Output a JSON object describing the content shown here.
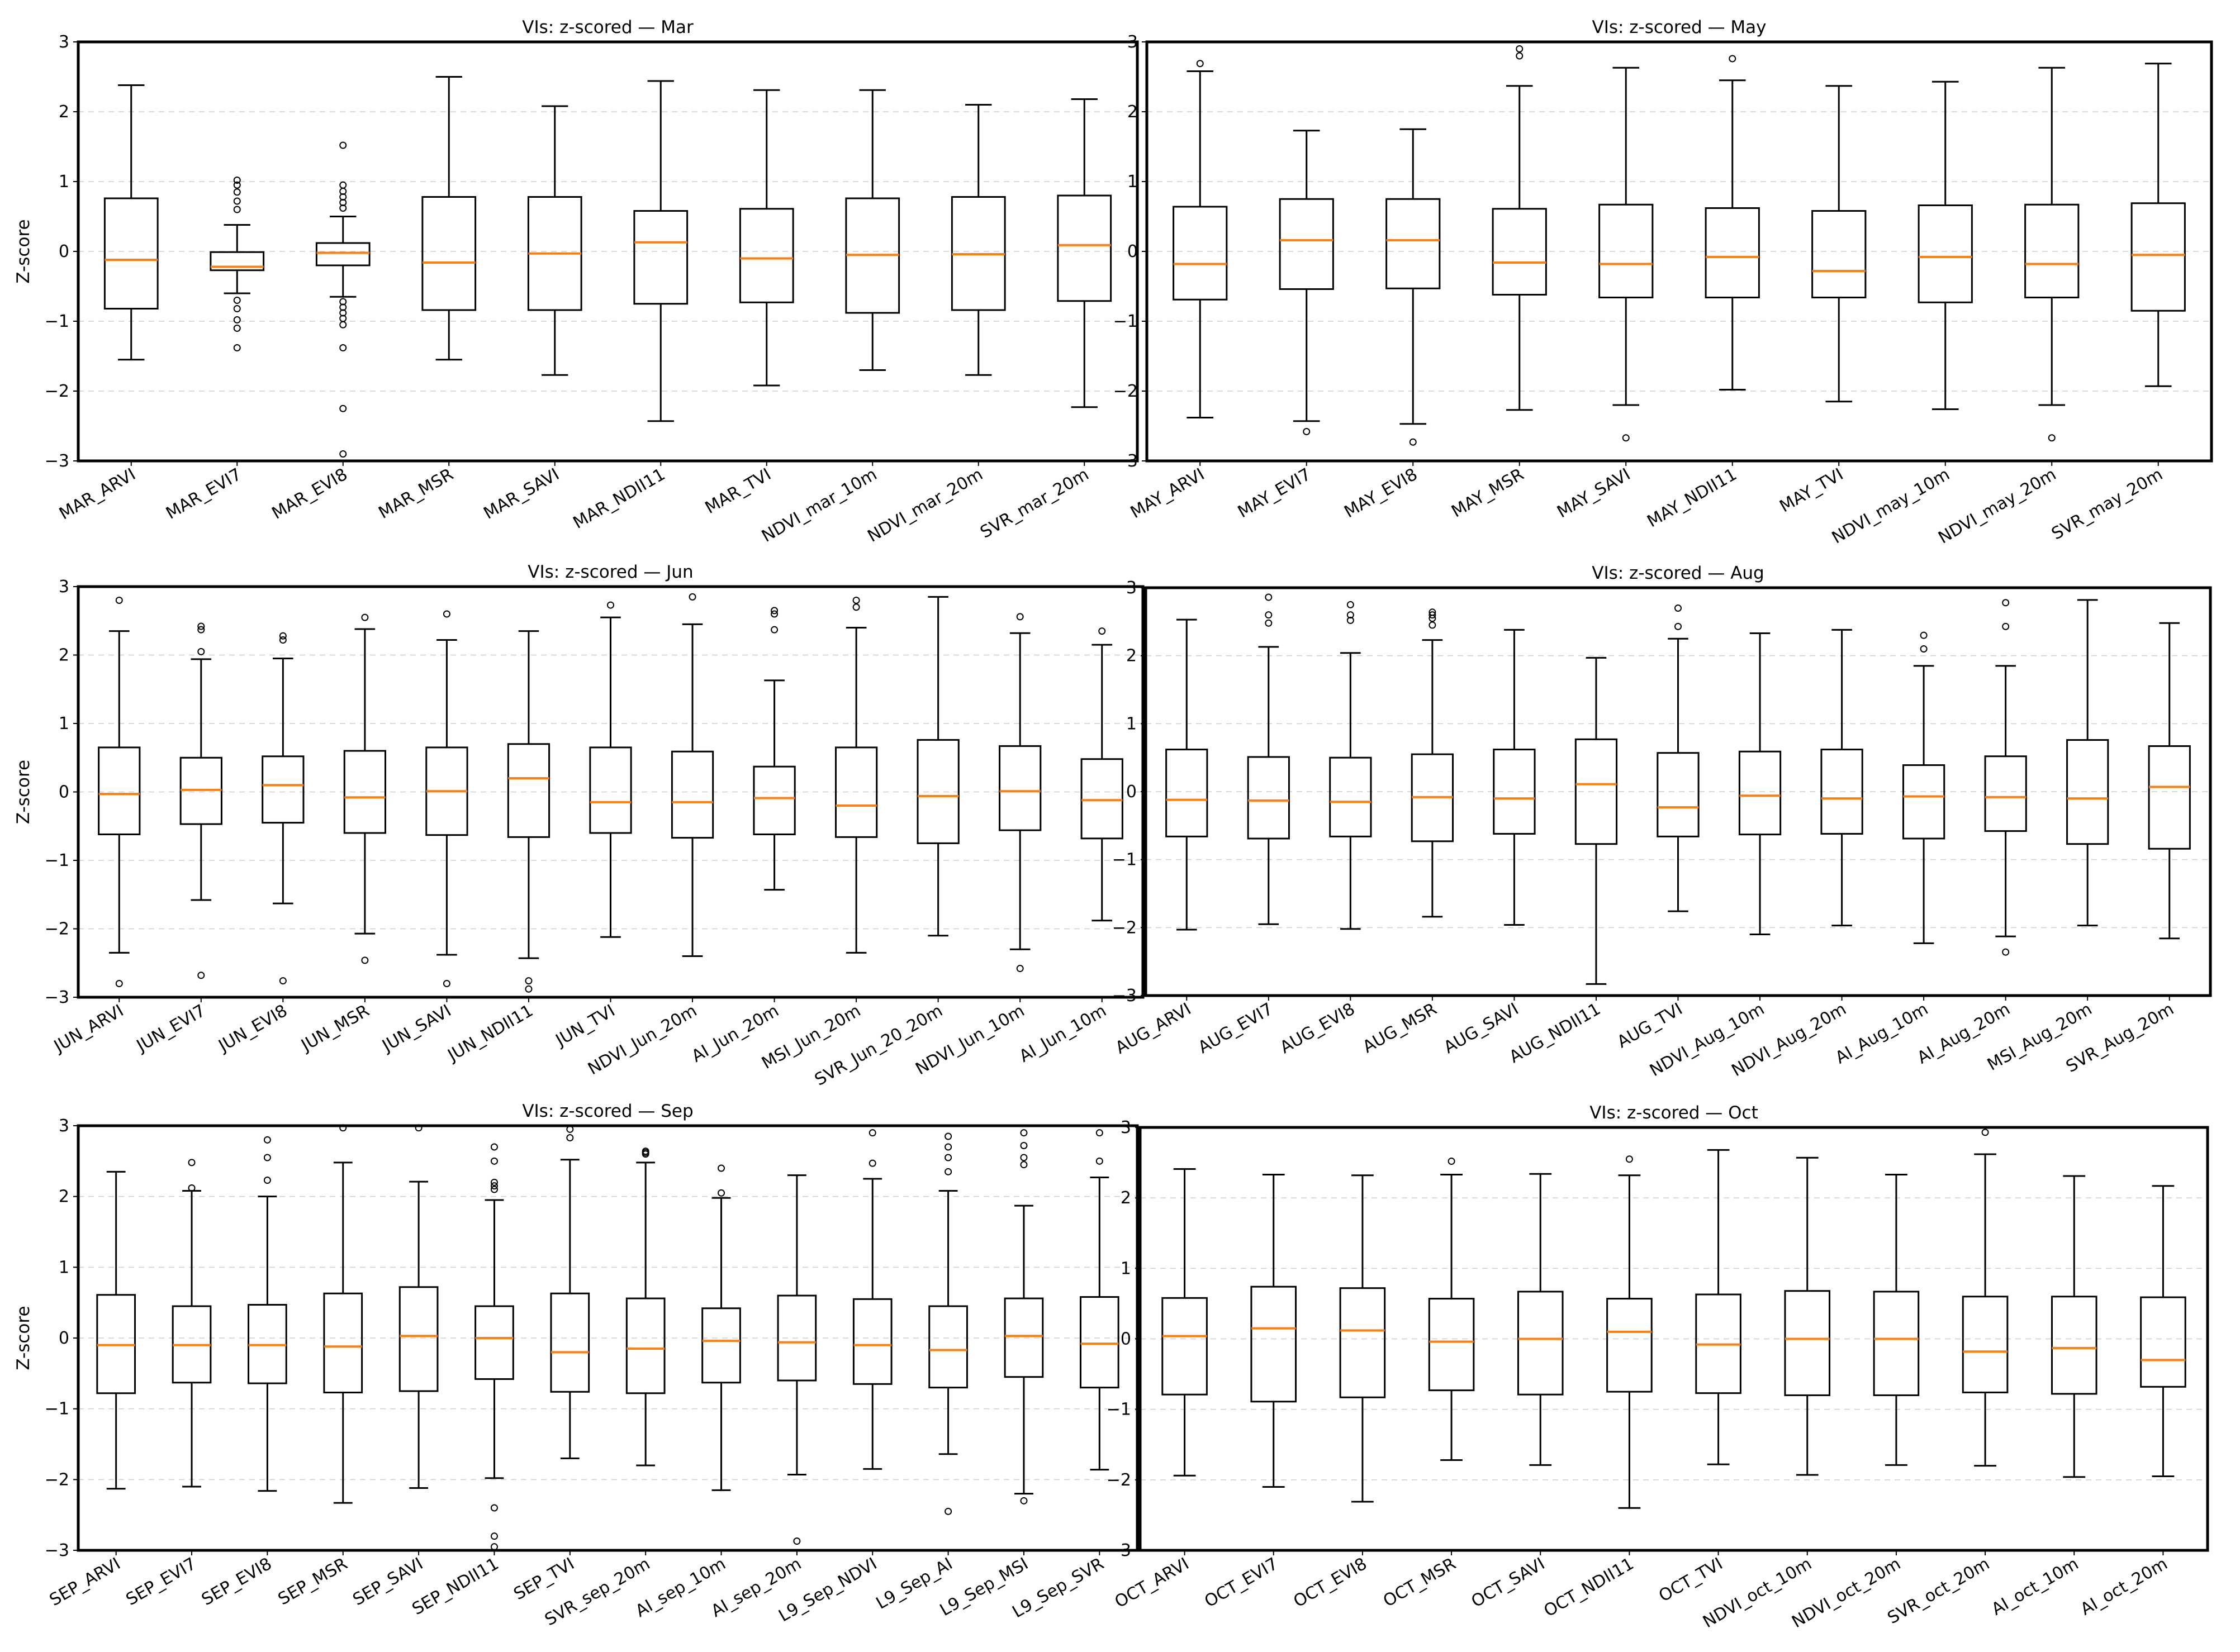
{
  "figure": {
    "background": "#ffffff",
    "median_color": "#ff7f0e",
    "box_color": "#000000",
    "grid_color": "#b0b0b0"
  },
  "chart_data": [
    {
      "type": "box",
      "title": "VIs: z-scored — Mar",
      "ylabel": "Z-score",
      "ylim": [
        -3,
        3
      ],
      "yticks": [
        -3,
        -2,
        -1,
        0,
        1,
        2,
        3
      ],
      "grid": "y-dashed",
      "categories": [
        "MAR_ARVI",
        "MAR_EVI7",
        "MAR_EVI8",
        "MAR_MSR",
        "MAR_SAVI",
        "MAR_NDII11",
        "MAR_TVI",
        "NDVI_mar_10m",
        "NDVI_mar_20m",
        "SVR_mar_20m"
      ],
      "boxes": [
        {
          "whislo": -1.55,
          "q1": -0.82,
          "med": -0.12,
          "q3": 0.76,
          "whishi": 2.38,
          "fliers": []
        },
        {
          "whislo": -0.6,
          "q1": -0.27,
          "med": -0.22,
          "q3": -0.01,
          "whishi": 0.38,
          "fliers": [
            0.6,
            0.72,
            0.85,
            0.95,
            1.02,
            -0.7,
            -0.82,
            -0.98,
            -1.1,
            -1.38
          ]
        },
        {
          "whislo": -0.65,
          "q1": -0.2,
          "med": -0.02,
          "q3": 0.12,
          "whishi": 0.5,
          "fliers": [
            0.62,
            0.7,
            0.78,
            0.86,
            0.95,
            1.52,
            -0.72,
            -0.8,
            -0.88,
            -0.96,
            -1.05,
            -1.38,
            -2.25,
            -2.9
          ]
        },
        {
          "whislo": -1.55,
          "q1": -0.84,
          "med": -0.16,
          "q3": 0.78,
          "whishi": 2.5,
          "fliers": []
        },
        {
          "whislo": -1.77,
          "q1": -0.84,
          "med": -0.03,
          "q3": 0.78,
          "whishi": 2.08,
          "fliers": []
        },
        {
          "whislo": -2.43,
          "q1": -0.75,
          "med": 0.13,
          "q3": 0.58,
          "whishi": 2.44,
          "fliers": []
        },
        {
          "whislo": -1.92,
          "q1": -0.73,
          "med": -0.1,
          "q3": 0.61,
          "whishi": 2.31,
          "fliers": []
        },
        {
          "whislo": -1.7,
          "q1": -0.88,
          "med": -0.05,
          "q3": 0.76,
          "whishi": 2.31,
          "fliers": []
        },
        {
          "whislo": -1.77,
          "q1": -0.84,
          "med": -0.04,
          "q3": 0.78,
          "whishi": 2.1,
          "fliers": []
        },
        {
          "whislo": -2.23,
          "q1": -0.71,
          "med": 0.09,
          "q3": 0.8,
          "whishi": 2.18,
          "fliers": []
        }
      ]
    },
    {
      "type": "box",
      "title": "VIs: z-scored — May",
      "ylabel": "",
      "ylim": [
        -3,
        3
      ],
      "yticks": [
        -3,
        -2,
        -1,
        0,
        1,
        2,
        3
      ],
      "grid": "y-dashed",
      "categories": [
        "MAY_ARVI",
        "MAY_EVI7",
        "MAY_EVI8",
        "MAY_MSR",
        "MAY_SAVI",
        "MAY_NDII11",
        "MAY_TVI",
        "NDVI_may_10m",
        "NDVI_may_20m",
        "SVR_may_20m"
      ],
      "boxes": [
        {
          "whislo": -2.38,
          "q1": -0.69,
          "med": -0.18,
          "q3": 0.64,
          "whishi": 2.58,
          "fliers": [
            2.69
          ]
        },
        {
          "whislo": -2.43,
          "q1": -0.54,
          "med": 0.16,
          "q3": 0.75,
          "whishi": 1.73,
          "fliers": [
            -2.58
          ]
        },
        {
          "whislo": -2.47,
          "q1": -0.53,
          "med": 0.16,
          "q3": 0.75,
          "whishi": 1.75,
          "fliers": [
            -2.73
          ]
        },
        {
          "whislo": -2.27,
          "q1": -0.62,
          "med": -0.16,
          "q3": 0.61,
          "whishi": 2.37,
          "fliers": [
            2.8,
            2.9
          ]
        },
        {
          "whislo": -2.2,
          "q1": -0.66,
          "med": -0.18,
          "q3": 0.67,
          "whishi": 2.63,
          "fliers": [
            -2.67
          ]
        },
        {
          "whislo": -1.98,
          "q1": -0.66,
          "med": -0.08,
          "q3": 0.62,
          "whishi": 2.45,
          "fliers": [
            2.76
          ]
        },
        {
          "whislo": -2.15,
          "q1": -0.66,
          "med": -0.28,
          "q3": 0.58,
          "whishi": 2.37,
          "fliers": []
        },
        {
          "whislo": -2.26,
          "q1": -0.73,
          "med": -0.08,
          "q3": 0.66,
          "whishi": 2.43,
          "fliers": []
        },
        {
          "whislo": -2.2,
          "q1": -0.66,
          "med": -0.18,
          "q3": 0.67,
          "whishi": 2.63,
          "fliers": [
            -2.67
          ]
        },
        {
          "whislo": -1.93,
          "q1": -0.85,
          "med": -0.05,
          "q3": 0.69,
          "whishi": 2.69,
          "fliers": []
        }
      ]
    },
    {
      "type": "box",
      "title": "VIs: z-scored — Jun",
      "ylabel": "Z-score",
      "ylim": [
        -3,
        3
      ],
      "yticks": [
        -3,
        -2,
        -1,
        0,
        1,
        2,
        3
      ],
      "grid": "y-dashed",
      "categories": [
        "JUN_ARVI",
        "JUN_EVI7",
        "JUN_EVI8",
        "JUN_MSR",
        "JUN_SAVI",
        "JUN_NDII11",
        "JUN_TVI",
        "NDVI_Jun_20m",
        "AI_Jun_20m",
        "MSI_Jun_20m",
        "SVR_Jun_20_20m",
        "NDVI_Jun_10m",
        "AI_Jun_10m"
      ],
      "boxes": [
        {
          "whislo": -2.35,
          "q1": -0.62,
          "med": -0.03,
          "q3": 0.65,
          "whishi": 2.35,
          "fliers": [
            2.8,
            -2.8
          ]
        },
        {
          "whislo": -1.58,
          "q1": -0.47,
          "med": 0.03,
          "q3": 0.5,
          "whishi": 1.94,
          "fliers": [
            2.05,
            2.37,
            2.42,
            -2.68
          ]
        },
        {
          "whislo": -1.63,
          "q1": -0.45,
          "med": 0.1,
          "q3": 0.52,
          "whishi": 1.95,
          "fliers": [
            2.22,
            2.28,
            -2.76
          ]
        },
        {
          "whislo": -2.07,
          "q1": -0.6,
          "med": -0.08,
          "q3": 0.6,
          "whishi": 2.38,
          "fliers": [
            2.55,
            -2.46
          ]
        },
        {
          "whislo": -2.38,
          "q1": -0.63,
          "med": 0.01,
          "q3": 0.65,
          "whishi": 2.22,
          "fliers": [
            2.6,
            -2.8
          ]
        },
        {
          "whislo": -2.43,
          "q1": -0.66,
          "med": 0.2,
          "q3": 0.7,
          "whishi": 2.35,
          "fliers": [
            -2.76,
            -2.88
          ]
        },
        {
          "whislo": -2.12,
          "q1": -0.6,
          "med": -0.15,
          "q3": 0.65,
          "whishi": 2.55,
          "fliers": [
            2.73
          ]
        },
        {
          "whislo": -2.4,
          "q1": -0.67,
          "med": -0.15,
          "q3": 0.59,
          "whishi": 2.45,
          "fliers": [
            2.85
          ]
        },
        {
          "whislo": -1.43,
          "q1": -0.62,
          "med": -0.09,
          "q3": 0.37,
          "whishi": 1.63,
          "fliers": [
            2.37,
            2.6,
            2.65
          ]
        },
        {
          "whislo": -2.35,
          "q1": -0.66,
          "med": -0.2,
          "q3": 0.65,
          "whishi": 2.4,
          "fliers": [
            2.7,
            2.8
          ]
        },
        {
          "whislo": -2.1,
          "q1": -0.75,
          "med": -0.06,
          "q3": 0.76,
          "whishi": 2.85,
          "fliers": []
        },
        {
          "whislo": -2.3,
          "q1": -0.56,
          "med": 0.01,
          "q3": 0.67,
          "whishi": 2.32,
          "fliers": [
            2.56,
            -2.58
          ]
        },
        {
          "whislo": -1.88,
          "q1": -0.68,
          "med": -0.12,
          "q3": 0.48,
          "whishi": 2.15,
          "fliers": [
            2.35
          ]
        }
      ]
    },
    {
      "type": "box",
      "title": "VIs: z-scored — Aug",
      "ylabel": "",
      "ylim": [
        -3,
        3
      ],
      "yticks": [
        -3,
        -2,
        -1,
        0,
        1,
        2,
        3
      ],
      "grid": "y-dashed",
      "categories": [
        "AUG_ARVI",
        "AUG_EVI7",
        "AUG_EVI8",
        "AUG_MSR",
        "AUG_SAVI",
        "AUG_NDII11",
        "AUG_TVI",
        "NDVI_Aug_10m",
        "NDVI_Aug_20m",
        "AI_Aug_10m",
        "AI_Aug_20m",
        "MSI_Aug_20m",
        "SVR_Aug_20m"
      ],
      "boxes": [
        {
          "whislo": -2.03,
          "q1": -0.66,
          "med": -0.12,
          "q3": 0.62,
          "whishi": 2.53,
          "fliers": []
        },
        {
          "whislo": -1.95,
          "q1": -0.69,
          "med": -0.13,
          "q3": 0.51,
          "whishi": 2.13,
          "fliers": [
            2.48,
            2.6,
            2.86
          ]
        },
        {
          "whislo": -2.02,
          "q1": -0.66,
          "med": -0.15,
          "q3": 0.5,
          "whishi": 2.04,
          "fliers": [
            2.52,
            2.6,
            2.75
          ]
        },
        {
          "whislo": -1.84,
          "q1": -0.73,
          "med": -0.08,
          "q3": 0.55,
          "whishi": 2.23,
          "fliers": [
            2.45,
            2.55,
            2.6,
            2.64
          ]
        },
        {
          "whislo": -1.96,
          "q1": -0.62,
          "med": -0.1,
          "q3": 0.62,
          "whishi": 2.38,
          "fliers": []
        },
        {
          "whislo": -2.83,
          "q1": -0.77,
          "med": 0.11,
          "q3": 0.77,
          "whishi": 1.97,
          "fliers": []
        },
        {
          "whislo": -1.76,
          "q1": -0.66,
          "med": -0.23,
          "q3": 0.57,
          "whishi": 2.25,
          "fliers": [
            2.43,
            2.7
          ]
        },
        {
          "whislo": -2.1,
          "q1": -0.63,
          "med": -0.06,
          "q3": 0.59,
          "whishi": 2.33,
          "fliers": []
        },
        {
          "whislo": -1.97,
          "q1": -0.62,
          "med": -0.1,
          "q3": 0.62,
          "whishi": 2.38,
          "fliers": []
        },
        {
          "whislo": -2.23,
          "q1": -0.69,
          "med": -0.07,
          "q3": 0.39,
          "whishi": 1.85,
          "fliers": [
            2.1,
            2.3
          ]
        },
        {
          "whislo": -2.13,
          "q1": -0.58,
          "med": -0.08,
          "q3": 0.52,
          "whishi": 1.85,
          "fliers": [
            2.43,
            2.78,
            -2.36
          ]
        },
        {
          "whislo": -1.97,
          "q1": -0.77,
          "med": -0.1,
          "q3": 0.76,
          "whishi": 2.82,
          "fliers": []
        },
        {
          "whislo": -2.16,
          "q1": -0.84,
          "med": 0.07,
          "q3": 0.67,
          "whishi": 2.48,
          "fliers": []
        }
      ]
    },
    {
      "type": "box",
      "title": "VIs: z-scored — Sep",
      "ylabel": "Z-score",
      "ylim": [
        -3,
        3
      ],
      "yticks": [
        -3,
        -2,
        -1,
        0,
        1,
        2,
        3
      ],
      "grid": "y-dashed",
      "categories": [
        "SEP_ARVI",
        "SEP_EVI7",
        "SEP_EVI8",
        "SEP_MSR",
        "SEP_SAVI",
        "SEP_NDII11",
        "SEP_TVI",
        "SVR_sep_20m",
        "AI_sep_10m",
        "AI_sep_20m",
        "L9_Sep_NDVI",
        "L9_Sep_AI",
        "L9_Sep_MSI",
        "L9_Sep_SVR"
      ],
      "boxes": [
        {
          "whislo": -2.13,
          "q1": -0.78,
          "med": -0.1,
          "q3": 0.61,
          "whishi": 2.35,
          "fliers": []
        },
        {
          "whislo": -2.1,
          "q1": -0.63,
          "med": -0.1,
          "q3": 0.45,
          "whishi": 2.08,
          "fliers": [
            2.12,
            2.48
          ]
        },
        {
          "whislo": -2.16,
          "q1": -0.64,
          "med": -0.1,
          "q3": 0.47,
          "whishi": 2.0,
          "fliers": [
            2.23,
            2.55,
            2.8
          ]
        },
        {
          "whislo": -2.33,
          "q1": -0.77,
          "med": -0.12,
          "q3": 0.63,
          "whishi": 2.48,
          "fliers": [
            2.97
          ]
        },
        {
          "whislo": -2.12,
          "q1": -0.75,
          "med": 0.03,
          "q3": 0.72,
          "whishi": 2.21,
          "fliers": [
            2.97
          ]
        },
        {
          "whislo": -1.98,
          "q1": -0.58,
          "med": 0.0,
          "q3": 0.45,
          "whishi": 1.95,
          "fliers": [
            2.1,
            2.15,
            2.2,
            2.5,
            2.7,
            -2.4,
            -2.8,
            -2.95
          ]
        },
        {
          "whislo": -1.7,
          "q1": -0.76,
          "med": -0.2,
          "q3": 0.63,
          "whishi": 2.52,
          "fliers": [
            2.83,
            2.95
          ]
        },
        {
          "whislo": -1.8,
          "q1": -0.78,
          "med": -0.15,
          "q3": 0.56,
          "whishi": 2.48,
          "fliers": [
            2.6,
            2.62,
            2.64
          ]
        },
        {
          "whislo": -2.15,
          "q1": -0.63,
          "med": -0.04,
          "q3": 0.42,
          "whishi": 1.98,
          "fliers": [
            2.05,
            2.4
          ]
        },
        {
          "whislo": -1.93,
          "q1": -0.6,
          "med": -0.06,
          "q3": 0.6,
          "whishi": 2.3,
          "fliers": [
            -2.87
          ]
        },
        {
          "whislo": -1.85,
          "q1": -0.65,
          "med": -0.1,
          "q3": 0.55,
          "whishi": 2.25,
          "fliers": [
            2.47,
            2.9
          ]
        },
        {
          "whislo": -1.64,
          "q1": -0.7,
          "med": -0.17,
          "q3": 0.45,
          "whishi": 2.08,
          "fliers": [
            2.35,
            2.55,
            2.7,
            2.85,
            -2.45
          ]
        },
        {
          "whislo": -2.2,
          "q1": -0.55,
          "med": 0.03,
          "q3": 0.56,
          "whishi": 1.87,
          "fliers": [
            2.45,
            2.55,
            2.72,
            2.9,
            -2.3
          ]
        },
        {
          "whislo": -1.86,
          "q1": -0.7,
          "med": -0.08,
          "q3": 0.58,
          "whishi": 2.27,
          "fliers": [
            2.5,
            2.9
          ]
        }
      ]
    },
    {
      "type": "box",
      "title": "VIs: z-scored — Oct",
      "ylabel": "",
      "ylim": [
        -3,
        3
      ],
      "yticks": [
        -3,
        -2,
        -1,
        0,
        1,
        2,
        3
      ],
      "grid": "y-dashed",
      "categories": [
        "OCT_ARVI",
        "OCT_EVI7",
        "OCT_EVI8",
        "OCT_MSR",
        "OCT_SAVI",
        "OCT_NDII11",
        "OCT_TVI",
        "NDVI_oct_10m",
        "NDVI_oct_20m",
        "SVR_oct_20m",
        "AI_oct_10m",
        "AI_oct_20m"
      ],
      "boxes": [
        {
          "whislo": -1.94,
          "q1": -0.79,
          "med": 0.04,
          "q3": 0.58,
          "whishi": 2.41,
          "fliers": []
        },
        {
          "whislo": -2.1,
          "q1": -0.89,
          "med": 0.15,
          "q3": 0.74,
          "whishi": 2.33,
          "fliers": []
        },
        {
          "whislo": -2.31,
          "q1": -0.83,
          "med": 0.12,
          "q3": 0.72,
          "whishi": 2.32,
          "fliers": []
        },
        {
          "whislo": -1.72,
          "q1": -0.73,
          "med": -0.04,
          "q3": 0.57,
          "whishi": 2.33,
          "fliers": [
            2.52
          ]
        },
        {
          "whislo": -1.79,
          "q1": -0.79,
          "med": 0.0,
          "q3": 0.67,
          "whishi": 2.34,
          "fliers": []
        },
        {
          "whislo": -2.4,
          "q1": -0.75,
          "med": 0.1,
          "q3": 0.57,
          "whishi": 2.32,
          "fliers": [
            2.55
          ]
        },
        {
          "whislo": -1.78,
          "q1": -0.77,
          "med": -0.08,
          "q3": 0.63,
          "whishi": 2.68,
          "fliers": []
        },
        {
          "whislo": -1.93,
          "q1": -0.8,
          "med": 0.0,
          "q3": 0.68,
          "whishi": 2.57,
          "fliers": []
        },
        {
          "whislo": -1.79,
          "q1": -0.8,
          "med": 0.0,
          "q3": 0.67,
          "whishi": 2.33,
          "fliers": []
        },
        {
          "whislo": -1.8,
          "q1": -0.76,
          "med": -0.18,
          "q3": 0.6,
          "whishi": 2.62,
          "fliers": [
            2.93
          ]
        },
        {
          "whislo": -1.96,
          "q1": -0.78,
          "med": -0.13,
          "q3": 0.6,
          "whishi": 2.31,
          "fliers": []
        },
        {
          "whislo": -1.95,
          "q1": -0.68,
          "med": -0.3,
          "q3": 0.59,
          "whishi": 2.17,
          "fliers": []
        }
      ]
    }
  ]
}
